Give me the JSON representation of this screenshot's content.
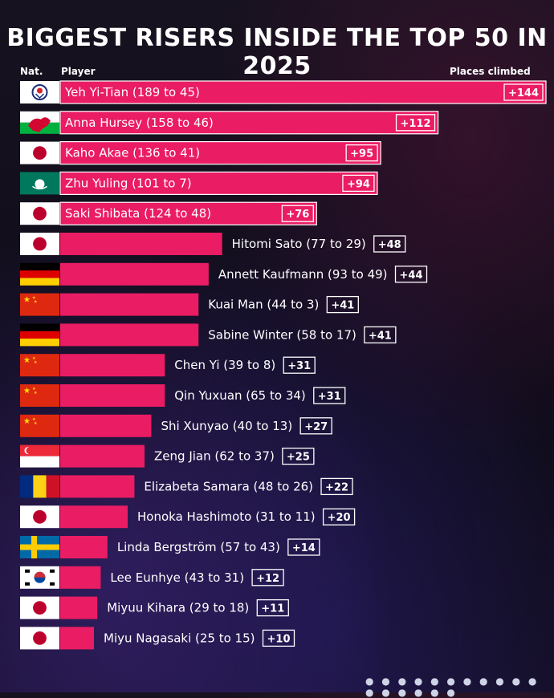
{
  "title": "BIGGEST RISERS INSIDE THE TOP 50 IN 2025",
  "headers": {
    "nat": "Nat.",
    "player": "Player",
    "places": "Places climbed"
  },
  "colors": {
    "bar": "#ea1c63",
    "background": "#120f1c"
  },
  "chart_data": {
    "type": "bar",
    "orientation": "horizontal",
    "title": "BIGGEST RISERS INSIDE THE TOP 50 IN 2025",
    "xlabel": "Places climbed",
    "ylabel": "Player",
    "grid": false,
    "categories": [
      "Yeh Yi-Tian (189 to 45)",
      "Anna Hursey (158 to 46)",
      "Kaho Akae (136 to 41)",
      "Zhu Yuling (101 to 7)",
      "Saki Shibata (124 to 48)",
      "Hitomi Sato (77 to 29)",
      "Annett Kaufmann (93 to 49)",
      "Kuai Man (44 to 3)",
      "Sabine Winter (58 to 17)",
      "Chen Yi (39 to 8)",
      "Qin Yuxuan (65 to 34)",
      "Shi Xunyao (40 to 13)",
      "Zeng Jian (62 to 37)",
      "Elizabeta Samara (48 to 26)",
      "Honoka Hashimoto (31 to 11)",
      "Linda Bergström (57 to 43)",
      "Lee Eunhye (43 to 31)",
      "Miyuu Kihara (29 to 18)",
      "Miyu Nagasaki (25 to 15)"
    ],
    "values": [
      144,
      112,
      95,
      94,
      76,
      48,
      44,
      41,
      41,
      31,
      31,
      27,
      25,
      22,
      20,
      14,
      12,
      11,
      10
    ],
    "value_labels": [
      "+144",
      "+112",
      "+95",
      "+94",
      "+76",
      "+48",
      "+44",
      "+41",
      "+41",
      "+31",
      "+31",
      "+27",
      "+25",
      "+22",
      "+20",
      "+14",
      "+12",
      "+11",
      "+10"
    ],
    "nations": [
      "chinese-taipei",
      "wales",
      "japan",
      "macau",
      "japan",
      "japan",
      "germany",
      "china",
      "germany",
      "china",
      "china",
      "china",
      "singapore",
      "romania",
      "japan",
      "sweden",
      "korea",
      "japan",
      "japan"
    ],
    "xlim": [
      0,
      144
    ]
  }
}
